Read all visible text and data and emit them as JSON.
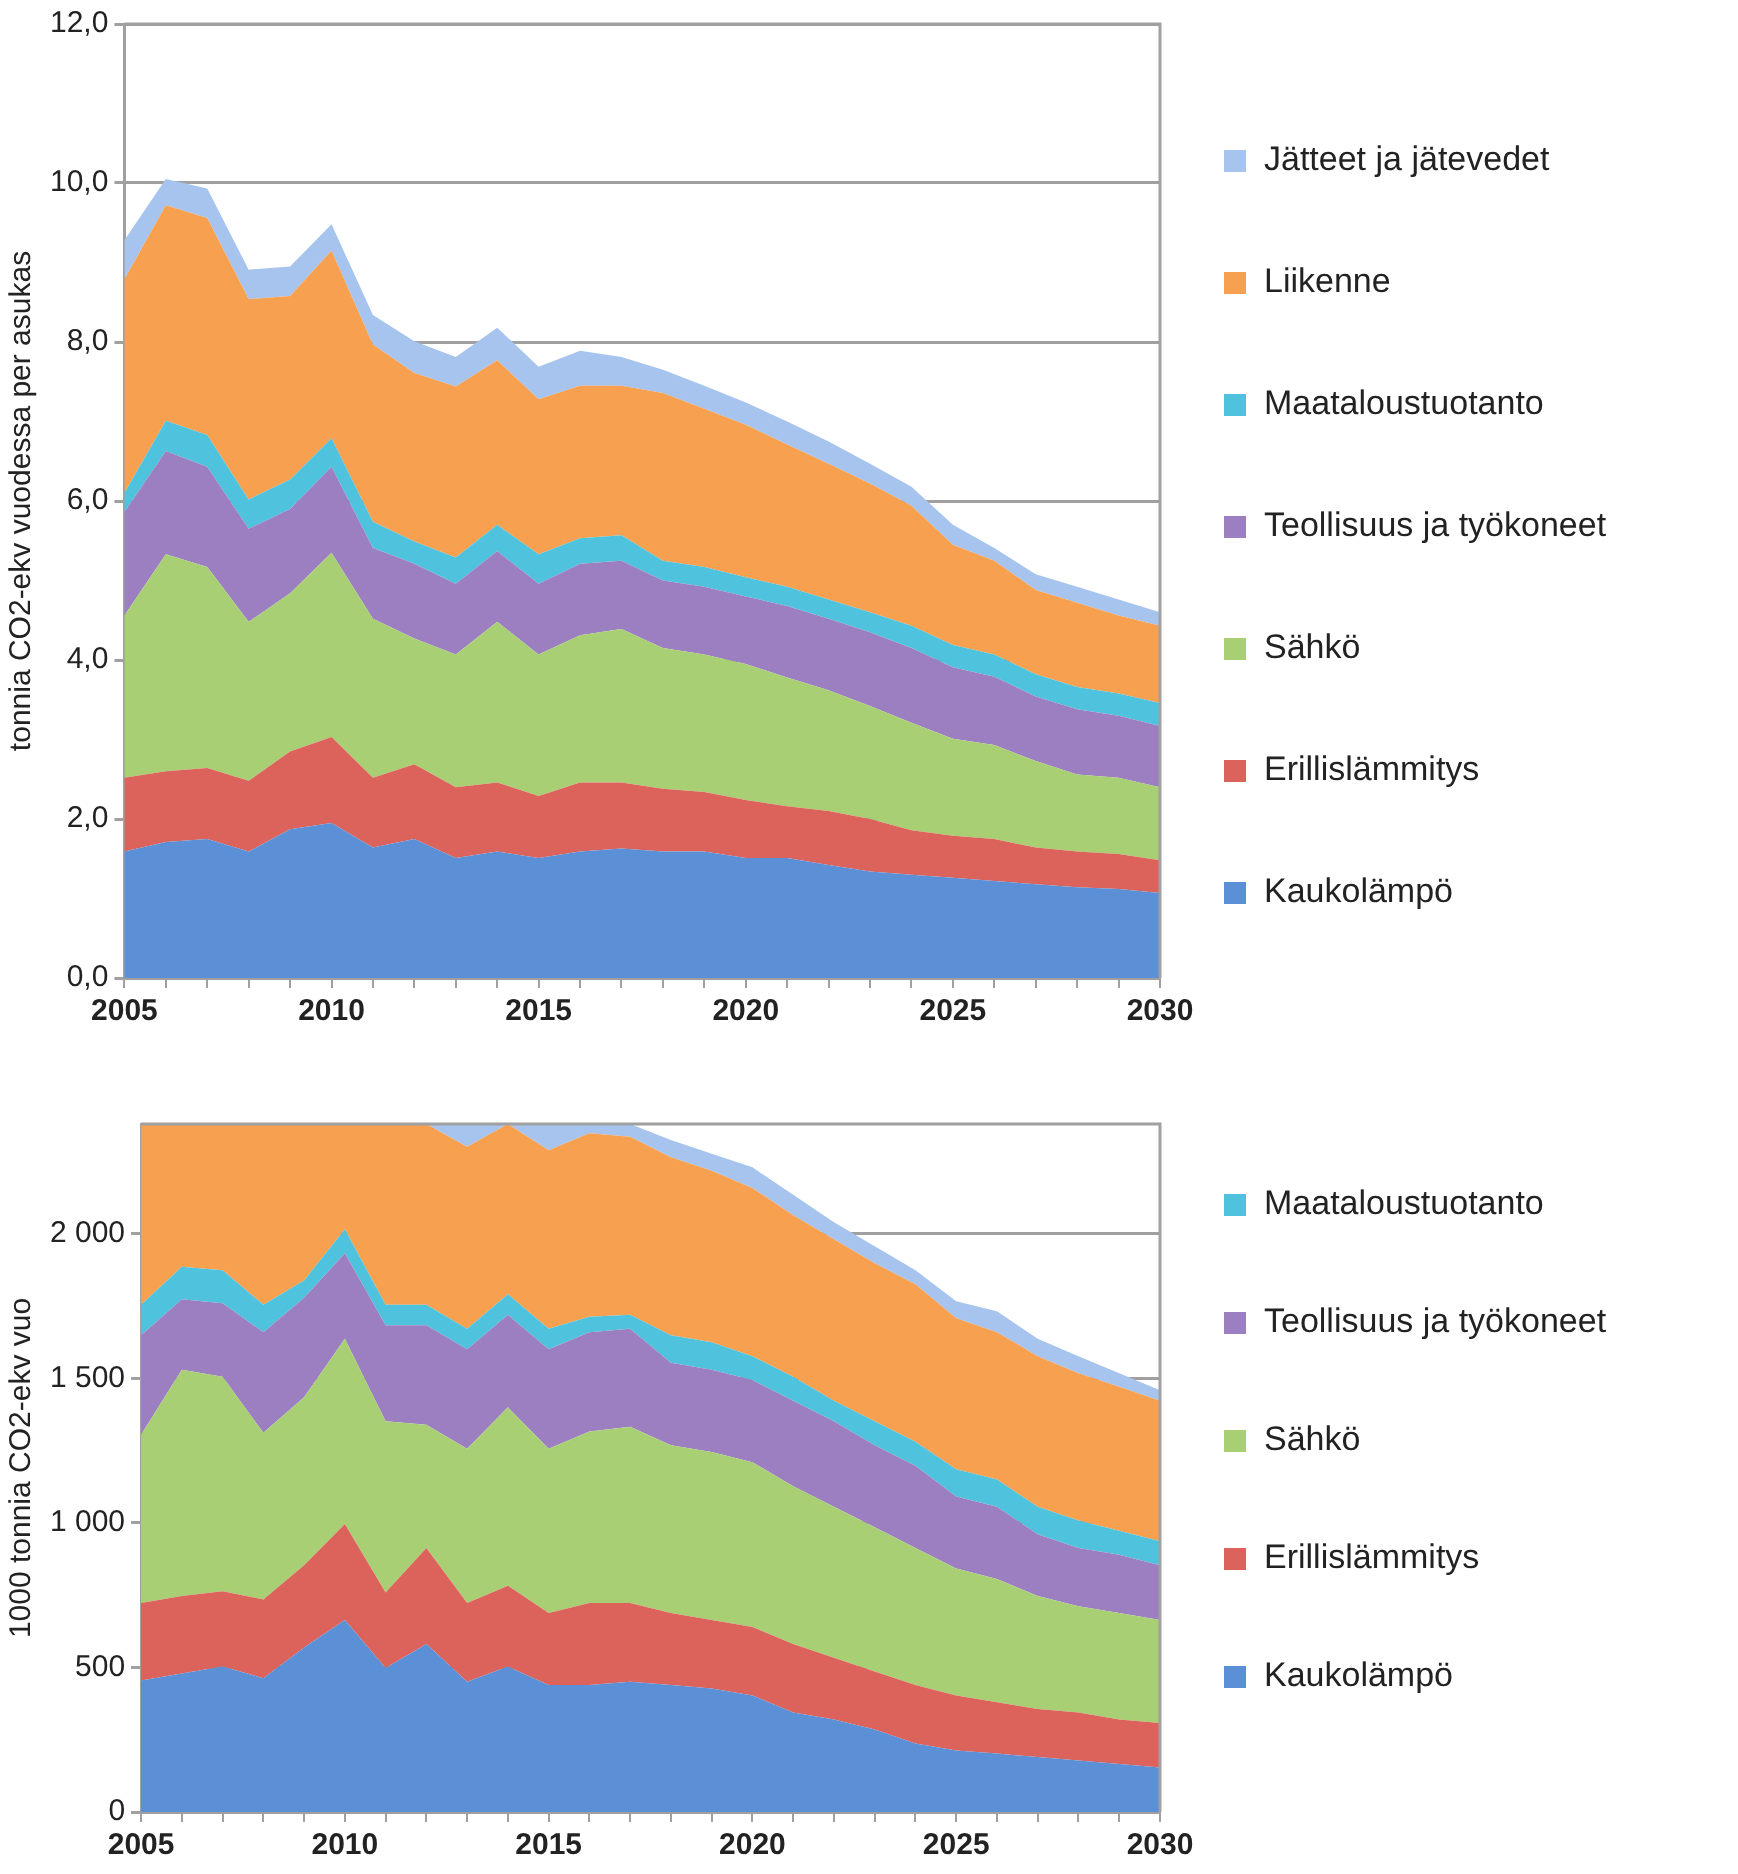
{
  "chart_data": [
    {
      "type": "area",
      "stacked": true,
      "ylabel": "tonnia CO2-ekv vuodessa per asukas",
      "legend": "right",
      "grid": "y",
      "categories": [
        "2005",
        null,
        null,
        null,
        null,
        "2010",
        null,
        null,
        null,
        null,
        "2015",
        null,
        null,
        null,
        null,
        "2020",
        null,
        null,
        null,
        null,
        "2025",
        null,
        null,
        null,
        null,
        "2030"
      ],
      "ylim": [
        0,
        12
      ],
      "yticks": [
        {
          "value": 0,
          "label": "0,0"
        },
        {
          "value": 2,
          "label": "2,0"
        },
        {
          "value": 4,
          "label": "4,0"
        },
        {
          "value": 6,
          "label": "6,0"
        },
        {
          "value": 8,
          "label": "8,0"
        },
        {
          "value": 10,
          "label": "10,0"
        },
        {
          "value": 12,
          "label": "12,0"
        }
      ],
      "series": [
        {
          "name": "Kaukolämpö",
          "color": "#5b8fd6",
          "values": [
            1.59,
            1.71,
            1.75,
            1.59,
            1.87,
            1.95,
            1.64,
            1.75,
            1.51,
            1.59,
            1.51,
            1.59,
            1.63,
            1.59,
            1.59,
            1.51,
            1.51,
            1.42,
            1.34,
            1.3,
            1.26,
            1.22,
            1.18,
            1.14,
            1.12,
            1.07
          ]
        },
        {
          "name": "Erillislämmitys",
          "color": "#dc625c",
          "values": [
            0.93,
            0.89,
            0.89,
            0.89,
            0.98,
            1.08,
            0.88,
            0.94,
            0.89,
            0.87,
            0.78,
            0.87,
            0.83,
            0.79,
            0.75,
            0.73,
            0.65,
            0.68,
            0.66,
            0.56,
            0.53,
            0.53,
            0.46,
            0.45,
            0.44,
            0.41
          ]
        },
        {
          "name": "Sähkö",
          "color": "#a9cf74",
          "values": [
            2.04,
            2.73,
            2.53,
            2.0,
            1.99,
            2.32,
            2.0,
            1.58,
            1.67,
            2.02,
            1.78,
            1.85,
            1.93,
            1.77,
            1.73,
            1.71,
            1.62,
            1.52,
            1.42,
            1.35,
            1.22,
            1.18,
            1.09,
            0.97,
            0.96,
            0.92
          ]
        },
        {
          "name": "Teollisuus ja työkoneet",
          "color": "#9b7fc1",
          "values": [
            1.3,
            1.3,
            1.26,
            1.17,
            1.06,
            1.08,
            0.89,
            0.94,
            0.89,
            0.89,
            0.89,
            0.9,
            0.86,
            0.85,
            0.85,
            0.85,
            0.9,
            0.9,
            0.93,
            0.94,
            0.9,
            0.86,
            0.81,
            0.82,
            0.78,
            0.77
          ]
        },
        {
          "name": "Maataloustuotanto",
          "color": "#4fc3de",
          "values": [
            0.24,
            0.38,
            0.4,
            0.37,
            0.37,
            0.36,
            0.33,
            0.28,
            0.33,
            0.33,
            0.37,
            0.32,
            0.32,
            0.25,
            0.25,
            0.24,
            0.24,
            0.24,
            0.25,
            0.28,
            0.28,
            0.28,
            0.28,
            0.28,
            0.28,
            0.29
          ]
        },
        {
          "name": "Liikenne",
          "color": "#f7a050",
          "values": [
            2.69,
            2.71,
            2.73,
            2.52,
            2.31,
            2.36,
            2.23,
            2.12,
            2.15,
            2.07,
            1.95,
            1.92,
            1.88,
            2.11,
            1.99,
            1.92,
            1.79,
            1.71,
            1.62,
            1.51,
            1.26,
            1.18,
            1.06,
            1.06,
            0.98,
            0.97
          ]
        },
        {
          "name": "Jätteet ja jätevedet",
          "color": "#a7c4ee",
          "values": [
            0.49,
            0.33,
            0.37,
            0.37,
            0.37,
            0.33,
            0.37,
            0.4,
            0.37,
            0.41,
            0.41,
            0.44,
            0.36,
            0.29,
            0.29,
            0.28,
            0.29,
            0.28,
            0.25,
            0.24,
            0.25,
            0.16,
            0.2,
            0.2,
            0.2,
            0.17
          ]
        }
      ]
    },
    {
      "type": "area",
      "stacked": true,
      "ylabel": "1000 tonnia CO2-ekv vuo",
      "legend": "right",
      "grid": "y",
      "categories": [
        "2005",
        null,
        null,
        null,
        null,
        "2010",
        null,
        null,
        null,
        null,
        "2015",
        null,
        null,
        null,
        null,
        "2020",
        null,
        null,
        null,
        null,
        "2025",
        null,
        null,
        null,
        null,
        "2030"
      ],
      "ylim": [
        0,
        2380
      ],
      "yticks": [
        0,
        500,
        {
          "value": 1000,
          "label": "1 000"
        },
        {
          "value": 1500,
          "label": "1 500"
        },
        {
          "value": 2000,
          "label": "2 000"
        }
      ],
      "series": [
        {
          "name": "Kaukolämpö",
          "color": "#5b8fd6",
          "values": [
            455,
            479,
            503,
            463,
            569,
            664,
            498,
            581,
            451,
            503,
            439,
            439,
            451,
            439,
            427,
            403,
            344,
            320,
            285,
            237,
            213,
            202,
            190,
            178,
            166,
            154
          ]
        },
        {
          "name": "Erillislämmitys",
          "color": "#dc625c",
          "values": [
            268,
            268,
            261,
            272,
            285,
            332,
            261,
            332,
            272,
            280,
            249,
            284,
            272,
            249,
            237,
            237,
            237,
            214,
            201,
            202,
            190,
            178,
            166,
            166,
            154,
            154
          ]
        },
        {
          "name": "Sähkö",
          "color": "#a9cf74",
          "values": [
            582,
            783,
            742,
            577,
            581,
            641,
            593,
            427,
            534,
            617,
            569,
            593,
            610,
            581,
            581,
            570,
            546,
            522,
            499,
            474,
            439,
            426,
            391,
            368,
            368,
            356
          ]
        },
        {
          "name": "Teollisuus ja työkoneet",
          "color": "#9b7fc1",
          "values": [
            344,
            244,
            254,
            348,
            344,
            296,
            332,
            344,
            344,
            320,
            344,
            344,
            339,
            285,
            285,
            284,
            296,
            296,
            284,
            285,
            249,
            250,
            214,
            201,
            202,
            190
          ]
        },
        {
          "name": "Maataloustuotanto",
          "color": "#4fc3de",
          "values": [
            106,
            112,
            114,
            95,
            60,
            83,
            71,
            71,
            71,
            71,
            71,
            53,
            48,
            95,
            95,
            83,
            83,
            71,
            83,
            83,
            95,
            94,
            95,
            95,
            83,
            83
          ]
        },
        {
          "color": "#f7a050",
          "values": [
            625,
            494,
            506,
            625,
            541,
            364,
            625,
            625,
            629,
            589,
            617,
            635,
            616,
            616,
            593,
            582,
            558,
            558,
            546,
            545,
            522,
            510,
            521,
            510,
            498,
            486
          ]
        },
        {
          "color": "#a7c4ee",
          "values": [
            0,
            0,
            0,
            0,
            0,
            0,
            0,
            0,
            79,
            0,
            91,
            32,
            44,
            60,
            59,
            71,
            71,
            59,
            59,
            48,
            59,
            72,
            60,
            59,
            47,
            36
          ]
        }
      ]
    }
  ]
}
